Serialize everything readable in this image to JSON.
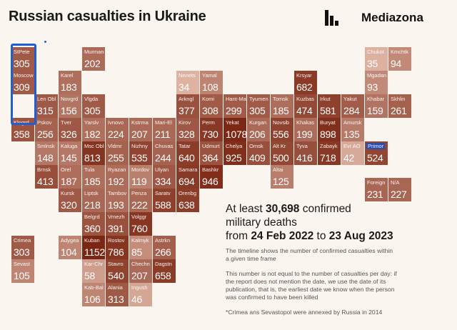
{
  "header": {
    "title": "Russian casualties in Ukraine",
    "brand": "Mediazona"
  },
  "summary": {
    "prefix": "At least",
    "total": "30,698",
    "suffix_line1": "confirmed",
    "line2": "military deaths",
    "from_label": "from",
    "start_date": "24 Feb 2022",
    "to_label": "to",
    "end_date": "23 Aug 2023"
  },
  "notes": {
    "timeline": "The timeline shows the number of confirmed casualties within a given time frame",
    "per_day": "This number is not equal to the number of casualties per day: if the report does not mention the date, we use the date of its publication, that is, the earliest date we know when the person was confirmed to have been killed",
    "footnote": "*Crimea ans Sevastopol were annexed by Russia in 2014"
  },
  "chart_data": {
    "type": "table",
    "title": "Russian casualties in Ukraine",
    "value_label": "confirmed military deaths",
    "selected_region": "Primor",
    "regions": [
      {
        "name": "StPete",
        "value": 305,
        "col": 0,
        "row": 0
      },
      {
        "name": "Murman",
        "value": 202,
        "col": 3,
        "row": 0
      },
      {
        "name": "Chukot",
        "value": 35,
        "col": 15,
        "row": 0
      },
      {
        "name": "Kmchtk",
        "value": 94,
        "col": 16,
        "row": 0
      },
      {
        "name": "Moscow",
        "value": 309,
        "col": 0,
        "row": 1
      },
      {
        "name": "Karel",
        "value": 183,
        "col": 2,
        "row": 1
      },
      {
        "name": "Nenets",
        "value": 34,
        "col": 7,
        "row": 1
      },
      {
        "name": "Yamal",
        "value": 108,
        "col": 8,
        "row": 1
      },
      {
        "name": "Krsyar",
        "value": 682,
        "col": 12,
        "row": 1
      },
      {
        "name": "Mgadan",
        "value": 93,
        "col": 15,
        "row": 1
      },
      {
        "name": "Len Obl",
        "value": 315,
        "col": 1,
        "row": 2
      },
      {
        "name": "Novgrd",
        "value": 156,
        "col": 2,
        "row": 2
      },
      {
        "name": "Vlgda",
        "value": 305,
        "col": 3,
        "row": 2
      },
      {
        "name": "Arkngl",
        "value": 377,
        "col": 7,
        "row": 2
      },
      {
        "name": "Komi",
        "value": 308,
        "col": 8,
        "row": 2
      },
      {
        "name": "Hant-Ma",
        "value": 299,
        "col": 9,
        "row": 2
      },
      {
        "name": "Tyumen",
        "value": 305,
        "col": 10,
        "row": 2
      },
      {
        "name": "Tomsk",
        "value": 185,
        "col": 11,
        "row": 2
      },
      {
        "name": "Kuzbas",
        "value": 474,
        "col": 12,
        "row": 2
      },
      {
        "name": "Irkut",
        "value": 581,
        "col": 13,
        "row": 2
      },
      {
        "name": "Yakut",
        "value": 284,
        "col": 14,
        "row": 2
      },
      {
        "name": "Khabar",
        "value": 159,
        "col": 15,
        "row": 2
      },
      {
        "name": "Skhlin",
        "value": 261,
        "col": 16,
        "row": 2
      },
      {
        "name": "Klngrd",
        "value": 358,
        "col": 0,
        "row": 3
      },
      {
        "name": "Pskov",
        "value": 256,
        "col": 1,
        "row": 3
      },
      {
        "name": "Tver",
        "value": 326,
        "col": 2,
        "row": 3
      },
      {
        "name": "Yarslv",
        "value": 182,
        "col": 3,
        "row": 3
      },
      {
        "name": "Ivnovo",
        "value": 224,
        "col": 4,
        "row": 3
      },
      {
        "name": "Kstrma",
        "value": 207,
        "col": 5,
        "row": 3
      },
      {
        "name": "Mari-El",
        "value": 211,
        "col": 6,
        "row": 3
      },
      {
        "name": "Kirov",
        "value": 328,
        "col": 7,
        "row": 3
      },
      {
        "name": "Perm",
        "value": 730,
        "col": 8,
        "row": 3
      },
      {
        "name": "Yekat",
        "value": 1078,
        "col": 9,
        "row": 3
      },
      {
        "name": "Kurgan",
        "value": 206,
        "col": 10,
        "row": 3
      },
      {
        "name": "Novsib",
        "value": 556,
        "col": 11,
        "row": 3
      },
      {
        "name": "Khakas",
        "value": 199,
        "col": 12,
        "row": 3
      },
      {
        "name": "Buryat",
        "value": 898,
        "col": 13,
        "row": 3
      },
      {
        "name": "Amursk",
        "value": 135,
        "col": 14,
        "row": 3
      },
      {
        "name": "Smlnsk",
        "value": 148,
        "col": 1,
        "row": 4
      },
      {
        "name": "Kaluga",
        "value": 145,
        "col": 2,
        "row": 4
      },
      {
        "name": "Msc Obl",
        "value": 813,
        "col": 3,
        "row": 4
      },
      {
        "name": "Vldmr",
        "value": 255,
        "col": 4,
        "row": 4
      },
      {
        "name": "Nizhny",
        "value": 535,
        "col": 5,
        "row": 4
      },
      {
        "name": "Chuvas",
        "value": 244,
        "col": 6,
        "row": 4
      },
      {
        "name": "Tatar",
        "value": 640,
        "col": 7,
        "row": 4
      },
      {
        "name": "Udmurt",
        "value": 364,
        "col": 8,
        "row": 4
      },
      {
        "name": "Chelya",
        "value": 925,
        "col": 9,
        "row": 4
      },
      {
        "name": "Omsk",
        "value": 409,
        "col": 10,
        "row": 4
      },
      {
        "name": "Alt Kr",
        "value": 500,
        "col": 11,
        "row": 4
      },
      {
        "name": "Tyva",
        "value": 416,
        "col": 12,
        "row": 4
      },
      {
        "name": "Zabayk",
        "value": 718,
        "col": 13,
        "row": 4
      },
      {
        "name": "Evr AO",
        "value": 42,
        "col": 14,
        "row": 4
      },
      {
        "name": "Primor",
        "value": 524,
        "col": 15,
        "row": 4
      },
      {
        "name": "Brnsk",
        "value": 413,
        "col": 1,
        "row": 5
      },
      {
        "name": "Orel",
        "value": 187,
        "col": 2,
        "row": 5
      },
      {
        "name": "Tula",
        "value": 185,
        "col": 3,
        "row": 5
      },
      {
        "name": "Ryazan",
        "value": 192,
        "col": 4,
        "row": 5
      },
      {
        "name": "Mordov",
        "value": 119,
        "col": 5,
        "row": 5
      },
      {
        "name": "Ulyan",
        "value": 334,
        "col": 6,
        "row": 5
      },
      {
        "name": "Samara",
        "value": 694,
        "col": 7,
        "row": 5
      },
      {
        "name": "Bashkr",
        "value": 946,
        "col": 8,
        "row": 5
      },
      {
        "name": "Altai",
        "value": 125,
        "col": 11,
        "row": 5
      },
      {
        "name": "Foreign",
        "value": 231,
        "col": 15,
        "row": 6
      },
      {
        "name": "N/A",
        "value": 227,
        "col": 16,
        "row": 6
      },
      {
        "name": "Kursk",
        "value": 320,
        "col": 2,
        "row": 6
      },
      {
        "name": "Liptsk",
        "value": 218,
        "col": 3,
        "row": 6
      },
      {
        "name": "Tambov",
        "value": 193,
        "col": 4,
        "row": 6
      },
      {
        "name": "Penza",
        "value": 222,
        "col": 5,
        "row": 6
      },
      {
        "name": "Saratv",
        "value": 588,
        "col": 6,
        "row": 6
      },
      {
        "name": "Orenbg",
        "value": 638,
        "col": 7,
        "row": 6
      },
      {
        "name": "Belgrd",
        "value": 360,
        "col": 3,
        "row": 7
      },
      {
        "name": "Vrnezh",
        "value": 391,
        "col": 4,
        "row": 7
      },
      {
        "name": "Volggr",
        "value": 760,
        "col": 5,
        "row": 7
      },
      {
        "name": "Crimea",
        "value": 303,
        "col": 0,
        "row": 8
      },
      {
        "name": "Adygea",
        "value": 104,
        "col": 2,
        "row": 8
      },
      {
        "name": "Kuban",
        "value": 1152,
        "col": 3,
        "row": 8
      },
      {
        "name": "Rostov",
        "value": 786,
        "col": 4,
        "row": 8
      },
      {
        "name": "Kalmyk",
        "value": 85,
        "col": 5,
        "row": 8
      },
      {
        "name": "Astrkn",
        "value": 266,
        "col": 6,
        "row": 8
      },
      {
        "name": "Sevast",
        "value": 105,
        "col": 0,
        "row": 9
      },
      {
        "name": "Kar-Chr",
        "value": 58,
        "col": 3,
        "row": 9
      },
      {
        "name": "Stavro",
        "value": 540,
        "col": 4,
        "row": 9
      },
      {
        "name": "Chechn",
        "value": 207,
        "col": 5,
        "row": 9
      },
      {
        "name": "Dagstn",
        "value": 658,
        "col": 6,
        "row": 9
      },
      {
        "name": "Kab-Bal",
        "value": 106,
        "col": 3,
        "row": 10
      },
      {
        "name": "Alania",
        "value": 313,
        "col": 4,
        "row": 10
      },
      {
        "name": "Ingush",
        "value": 46,
        "col": 5,
        "row": 10
      }
    ]
  },
  "colors": {
    "background": "#fbf5ef",
    "highlight": "#1f5fd6",
    "selected": "#2b4fb0",
    "scale_light": "#ecc7b6",
    "scale_dark": "#7a2410"
  }
}
